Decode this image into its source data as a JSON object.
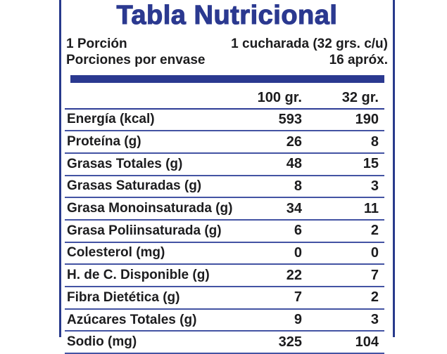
{
  "label": {
    "title": "Tabla Nutricional",
    "serving": {
      "portion_label": "1 Porción",
      "portion_value": "1 cucharada (32 grs. c/u)",
      "per_container_label": "Porciones por envase",
      "per_container_value": "16 apróx."
    },
    "table": {
      "columns": [
        "100 gr.",
        "32 gr."
      ],
      "rows": [
        {
          "name": "Energía (kcal)",
          "per100": "593",
          "per32": "190"
        },
        {
          "name": "Proteína (g)",
          "per100": "26",
          "per32": "8"
        },
        {
          "name": "Grasas Totales (g)",
          "per100": "48",
          "per32": "15"
        },
        {
          "name": "Grasas Saturadas (g)",
          "per100": "8",
          "per32": "3"
        },
        {
          "name": "Grasa Monoinsaturada (g)",
          "per100": "34",
          "per32": "11"
        },
        {
          "name": "Grasa Poliinsaturada (g)",
          "per100": "6",
          "per32": "2"
        },
        {
          "name": "Colesterol (mg)",
          "per100": "0",
          "per32": "0"
        },
        {
          "name": "H. de C. Disponible (g)",
          "per100": "22",
          "per32": "7"
        },
        {
          "name": "Fibra Dietética (g)",
          "per100": "7",
          "per32": "2"
        },
        {
          "name": "Azúcares Totales (g)",
          "per100": "9",
          "per32": "3"
        },
        {
          "name": "Sodio (mg)",
          "per100": "325",
          "per32": "104",
          "clipped_at_bottom": true
        }
      ]
    },
    "colors": {
      "brand_blue": "#2b3990",
      "separator_blue": "#4353a3",
      "header_separator_blue": "#2e3c96",
      "text_dark": "#1c1c1e",
      "background": "#ffffff"
    }
  }
}
